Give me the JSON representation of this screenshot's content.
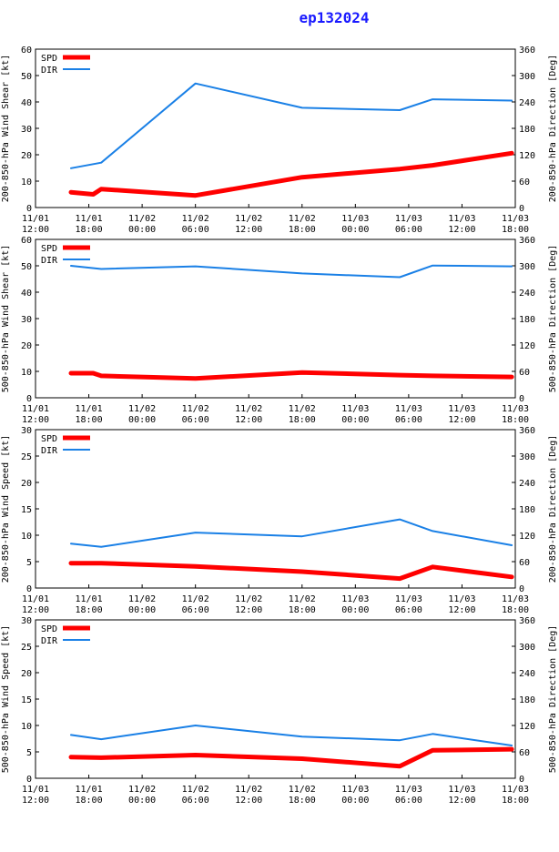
{
  "title": "ep132024",
  "colors": {
    "spd": "#ff0000",
    "dir": "#1a80e6",
    "axis": "#000000",
    "title": "#1a1aff"
  },
  "x_ticks": [
    [
      "11/01",
      "12:00"
    ],
    [
      "11/01",
      "18:00"
    ],
    [
      "11/02",
      "00:00"
    ],
    [
      "11/02",
      "06:00"
    ],
    [
      "11/02",
      "12:00"
    ],
    [
      "11/02",
      "18:00"
    ],
    [
      "11/03",
      "00:00"
    ],
    [
      "11/03",
      "06:00"
    ],
    [
      "11/03",
      "12:00"
    ],
    [
      "11/03",
      "18:00"
    ]
  ],
  "chart_data": [
    {
      "type": "line",
      "ylabel_left": "200-850-hPa Wind Shear [kt]",
      "ylabel_right": "200-850-hPa Direction [Deg]",
      "left_ticks": [
        "0",
        "10",
        "20",
        "30",
        "40",
        "50",
        "60"
      ],
      "right_ticks": [
        "0",
        "60",
        "120",
        "180",
        "240",
        "300",
        "360"
      ],
      "ylim_left": [
        0,
        60
      ],
      "ylim_right": [
        0,
        360
      ],
      "xlim_hours": [
        0,
        54
      ],
      "legend": [
        "SPD",
        "DIR"
      ],
      "series": [
        {
          "name": "SPD",
          "axis": "left",
          "x": [
            4,
            6.5,
            7.4,
            18,
            30,
            41,
            44.7,
            53.6
          ],
          "y": [
            5.8,
            5,
            7,
            4.6,
            11.5,
            14.6,
            16,
            20.6
          ]
        },
        {
          "name": "DIR",
          "axis": "left",
          "x": [
            4,
            7.4,
            18,
            30,
            41,
            44.7,
            53.6
          ],
          "y": [
            14.9,
            17,
            47,
            37.8,
            36.9,
            41,
            40.5
          ]
        }
      ]
    },
    {
      "type": "line",
      "ylabel_left": "500-850-hPa Wind Shear [kt]",
      "ylabel_right": "500-850-hPa Direction [Deg]",
      "left_ticks": [
        "0",
        "10",
        "20",
        "30",
        "40",
        "50",
        "60"
      ],
      "right_ticks": [
        "0",
        "60",
        "120",
        "180",
        "240",
        "300",
        "360"
      ],
      "ylim_left": [
        0,
        60
      ],
      "ylim_right": [
        0,
        360
      ],
      "xlim_hours": [
        0,
        54
      ],
      "legend": [
        "SPD",
        "DIR"
      ],
      "series": [
        {
          "name": "SPD",
          "axis": "left",
          "x": [
            4,
            6.5,
            7.4,
            18,
            30,
            41,
            44.7,
            53.6
          ],
          "y": [
            9.3,
            9.3,
            8.3,
            7.3,
            9.6,
            8.6,
            8.3,
            7.9
          ]
        },
        {
          "name": "DIR",
          "axis": "left",
          "x": [
            4,
            7.4,
            18,
            30,
            41,
            44.7,
            53.6
          ],
          "y": [
            50,
            48.8,
            49.8,
            47.1,
            45.7,
            50.1,
            49.8
          ]
        }
      ]
    },
    {
      "type": "line",
      "ylabel_left": "200-850-hPa Wind Speed [kt]",
      "ylabel_right": "200-850-hPa Direction [Deg]",
      "left_ticks": [
        "0",
        "5",
        "10",
        "15",
        "20",
        "25",
        "30"
      ],
      "right_ticks": [
        "0",
        "60",
        "120",
        "180",
        "240",
        "300",
        "360"
      ],
      "ylim_left": [
        0,
        30
      ],
      "ylim_right": [
        0,
        360
      ],
      "xlim_hours": [
        0,
        54
      ],
      "legend": [
        "SPD",
        "DIR"
      ],
      "series": [
        {
          "name": "SPD",
          "axis": "left",
          "x": [
            4,
            7.4,
            18,
            30,
            41,
            44.7,
            53.6
          ],
          "y": [
            4.7,
            4.7,
            4.1,
            3.1,
            1.8,
            4,
            2.1
          ]
        },
        {
          "name": "DIR",
          "axis": "left",
          "x": [
            4,
            7.4,
            18,
            30,
            41,
            44.7,
            53.6
          ],
          "y": [
            8.4,
            7.8,
            10.5,
            9.8,
            13,
            10.8,
            8.1
          ]
        }
      ]
    },
    {
      "type": "line",
      "ylabel_left": "500-850-hPa Wind Speed [kt]",
      "ylabel_right": "500-850-hPa Direction [Deg]",
      "left_ticks": [
        "0",
        "5",
        "10",
        "15",
        "20",
        "25",
        "30"
      ],
      "right_ticks": [
        "0",
        "60",
        "120",
        "180",
        "240",
        "300",
        "360"
      ],
      "ylim_left": [
        0,
        30
      ],
      "ylim_right": [
        0,
        360
      ],
      "xlim_hours": [
        0,
        54
      ],
      "legend": [
        "SPD",
        "DIR"
      ],
      "series": [
        {
          "name": "SPD",
          "axis": "left",
          "x": [
            4,
            7.4,
            18,
            30,
            41,
            44.7,
            53.6
          ],
          "y": [
            4,
            3.9,
            4.4,
            3.7,
            2.3,
            5.3,
            5.5
          ]
        },
        {
          "name": "DIR",
          "axis": "left",
          "x": [
            4,
            7.4,
            18,
            30,
            41,
            44.7,
            53.6
          ],
          "y": [
            8.2,
            7.4,
            10,
            7.9,
            7.2,
            8.4,
            6.2
          ]
        }
      ]
    }
  ]
}
